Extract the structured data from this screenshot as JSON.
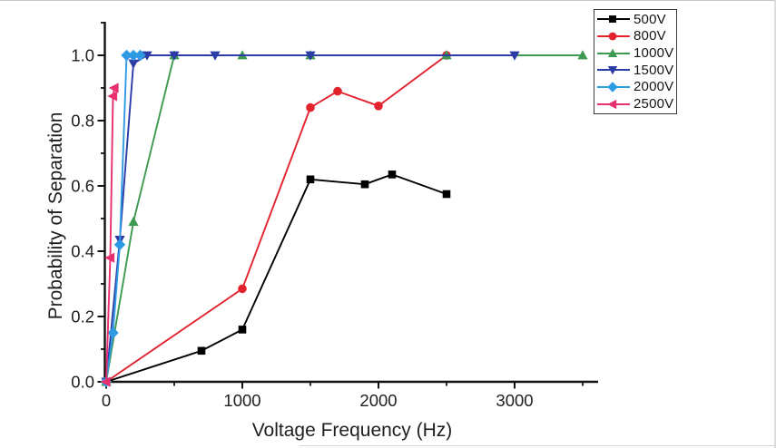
{
  "figure": {
    "xlabel": "Voltage Frequency (Hz)",
    "ylabel": "Probability of Separation"
  },
  "chart_data": {
    "type": "line",
    "title": "",
    "xlabel": "Voltage Frequency (Hz)",
    "ylabel": "Probability of Separation",
    "xlim": [
      0,
      3600
    ],
    "ylim": [
      0,
      1.1
    ],
    "grid": false,
    "legend_position": "top-right",
    "x_major_ticks": [
      0,
      1000,
      2000,
      3000
    ],
    "x_minor_ticks": [
      500,
      1500,
      2500,
      3500
    ],
    "y_major_ticks": [
      "0.0",
      "0.2",
      "0.4",
      "0.6",
      "0.8",
      "1.0"
    ],
    "y_minor_ticks": [
      0.1,
      0.3,
      0.5,
      0.7,
      0.9,
      1.1
    ],
    "axis_color": "#111111",
    "text_color": "#1f1f1f",
    "series": [
      {
        "name": "500V",
        "color": "#000000",
        "marker": "square",
        "points": [
          [
            0,
            0
          ],
          [
            700,
            0.095
          ],
          [
            1000,
            0.16
          ],
          [
            1500,
            0.62
          ],
          [
            1900,
            0.605
          ],
          [
            2100,
            0.635
          ],
          [
            2500,
            0.575
          ]
        ]
      },
      {
        "name": "800V",
        "color": "#e2232e",
        "marker": "circle",
        "points": [
          [
            0,
            0
          ],
          [
            1000,
            0.285
          ],
          [
            1500,
            0.84
          ],
          [
            1700,
            0.89
          ],
          [
            2000,
            0.845
          ],
          [
            2500,
            1.0
          ]
        ]
      },
      {
        "name": "1000V",
        "color": "#3e9a50",
        "marker": "triangle-up",
        "points": [
          [
            0,
            0
          ],
          [
            200,
            0.49
          ],
          [
            500,
            1.0
          ],
          [
            1000,
            1.0
          ],
          [
            1500,
            1.0
          ],
          [
            2500,
            1.0
          ],
          [
            3500,
            1.0
          ]
        ]
      },
      {
        "name": "1500V",
        "color": "#2c3ca6",
        "marker": "triangle-down",
        "points": [
          [
            0,
            0
          ],
          [
            100,
            0.435
          ],
          [
            200,
            0.975
          ],
          [
            300,
            1.0
          ],
          [
            500,
            1.0
          ],
          [
            800,
            1.0
          ],
          [
            1500,
            1.0
          ],
          [
            3000,
            1.0
          ]
        ]
      },
      {
        "name": "2000V",
        "color": "#2e9ae4",
        "marker": "diamond",
        "points": [
          [
            0,
            0
          ],
          [
            50,
            0.15
          ],
          [
            100,
            0.42
          ],
          [
            150,
            1.0
          ],
          [
            200,
            1.0
          ],
          [
            250,
            1.0
          ]
        ]
      },
      {
        "name": "2500V",
        "color": "#ea2f6e",
        "marker": "triangle-left",
        "points": [
          [
            0,
            0
          ],
          [
            30,
            0.38
          ],
          [
            50,
            0.875
          ],
          [
            60,
            0.9
          ]
        ]
      }
    ]
  },
  "legend": {
    "items": [
      "500V",
      "800V",
      "1000V",
      "1500V",
      "2000V",
      "2500V"
    ]
  }
}
